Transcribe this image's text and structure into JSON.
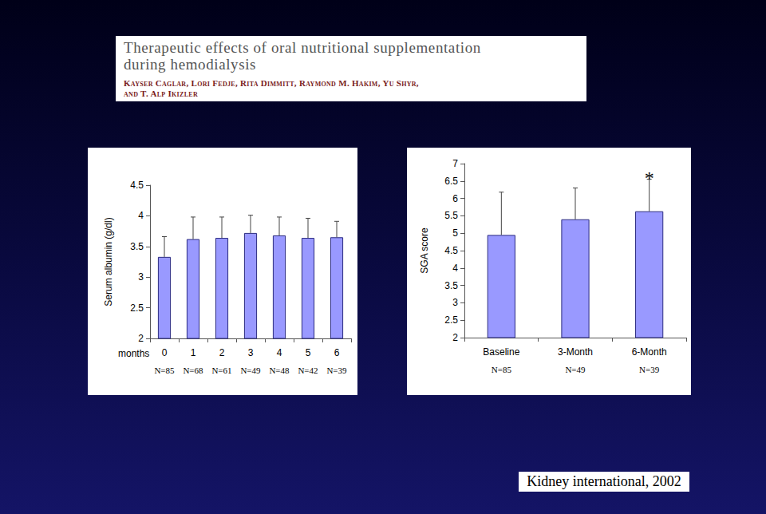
{
  "header": {
    "title": [
      "Therapeutic effects of oral nutritional supplementation",
      "during hemodialysis"
    ],
    "authors": [
      "Kayser Caglar, Lori Fedje, Rita Dimmitt, Raymond M. Hakim, Yu Shyr,",
      "and T. Alp Ikizler"
    ]
  },
  "footer": "Kidney international, 2002",
  "chart_data": [
    {
      "type": "bar",
      "ylabel": "Serum albumin (g/dl)",
      "xlabel": "months",
      "categories": [
        "0",
        "1",
        "2",
        "3",
        "4",
        "5",
        "6"
      ],
      "values": [
        3.33,
        3.62,
        3.64,
        3.72,
        3.68,
        3.64,
        3.65
      ],
      "errors": [
        0.33,
        0.36,
        0.34,
        0.29,
        0.3,
        0.32,
        0.26
      ],
      "n_labels": [
        "N=85",
        "N=68",
        "N=61",
        "N=49",
        "N=48",
        "N=42",
        "N=39"
      ],
      "color": "#9999ff",
      "ylim": [
        2,
        4.5
      ],
      "yticks": [
        2,
        2.5,
        3,
        3.5,
        4,
        4.5
      ],
      "grid": false
    },
    {
      "type": "bar",
      "ylabel": "SGA score",
      "categories": [
        "Baseline",
        "3-Month",
        "6-Month"
      ],
      "values": [
        4.95,
        5.4,
        5.63
      ],
      "errors": [
        1.23,
        0.9,
        0.92
      ],
      "n_labels": [
        "N=85",
        "N=49",
        "N=39"
      ],
      "annotations": [
        {
          "text": "*",
          "category": "6-Month"
        }
      ],
      "color": "#9999ff",
      "ylim": [
        2,
        7
      ],
      "yticks": [
        2,
        2.5,
        3,
        3.5,
        4,
        4.5,
        5,
        5.5,
        6,
        6.5,
        7
      ],
      "grid": false
    }
  ]
}
